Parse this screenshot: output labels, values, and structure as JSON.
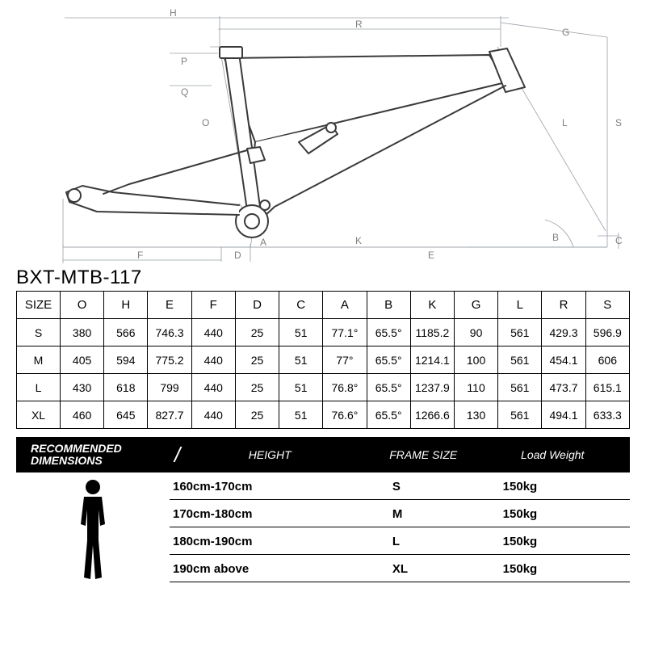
{
  "title": "BXT-MTB-117",
  "diagram": {
    "type": "technical-line-drawing",
    "stroke_thin": "#9aa0a6",
    "stroke_thin_w": 0.8,
    "stroke_frame": "#3a3a3a",
    "stroke_frame_w": 2.0,
    "labels": [
      "H",
      "R",
      "G",
      "S",
      "L",
      "B",
      "C",
      "E",
      "K",
      "D",
      "A",
      "P",
      "Q",
      "O",
      "F"
    ],
    "label_fontsize": 12,
    "label_color": "#808080"
  },
  "geom_table": {
    "headers": [
      "SIZE",
      "O",
      "H",
      "E",
      "F",
      "D",
      "C",
      "A",
      "B",
      "K",
      "G",
      "L",
      "R",
      "S"
    ],
    "rows": [
      [
        "S",
        "380",
        "566",
        "746.3",
        "440",
        "25",
        "51",
        "77.1°",
        "65.5°",
        "1185.2",
        "90",
        "561",
        "429.3",
        "596.9"
      ],
      [
        "M",
        "405",
        "594",
        "775.2",
        "440",
        "25",
        "51",
        "77°",
        "65.5°",
        "1214.1",
        "100",
        "561",
        "454.1",
        "606"
      ],
      [
        "L",
        "430",
        "618",
        "799",
        "440",
        "25",
        "51",
        "76.8°",
        "65.5°",
        "1237.9",
        "110",
        "561",
        "473.7",
        "615.1"
      ],
      [
        "XL",
        "460",
        "645",
        "827.7",
        "440",
        "25",
        "51",
        "76.6°",
        "65.5°",
        "1266.6",
        "130",
        "561",
        "494.1",
        "633.3"
      ]
    ],
    "border_color": "#000000",
    "font_color": "#000000",
    "cell_fontsize": 14
  },
  "rec_bar": {
    "label_line1": "RECOMMENDED",
    "label_line2": "DIMENSIONS",
    "col_height": "HEIGHT",
    "col_frame": "FRAME SIZE",
    "col_load": "Load Weight",
    "bg": "#000000",
    "fg": "#ffffff"
  },
  "rec_table": {
    "rows": [
      {
        "h": "160cm-170cm",
        "f": "S",
        "l": "150kg"
      },
      {
        "h": "170cm-180cm",
        "f": "M",
        "l": "150kg"
      },
      {
        "h": "180cm-190cm",
        "f": "L",
        "l": "150kg"
      },
      {
        "h": "190cm above",
        "f": "XL",
        "l": "150kg"
      }
    ],
    "border_color": "#000000",
    "font_color": "#000000"
  },
  "person_icon": {
    "fill": "#000000"
  }
}
